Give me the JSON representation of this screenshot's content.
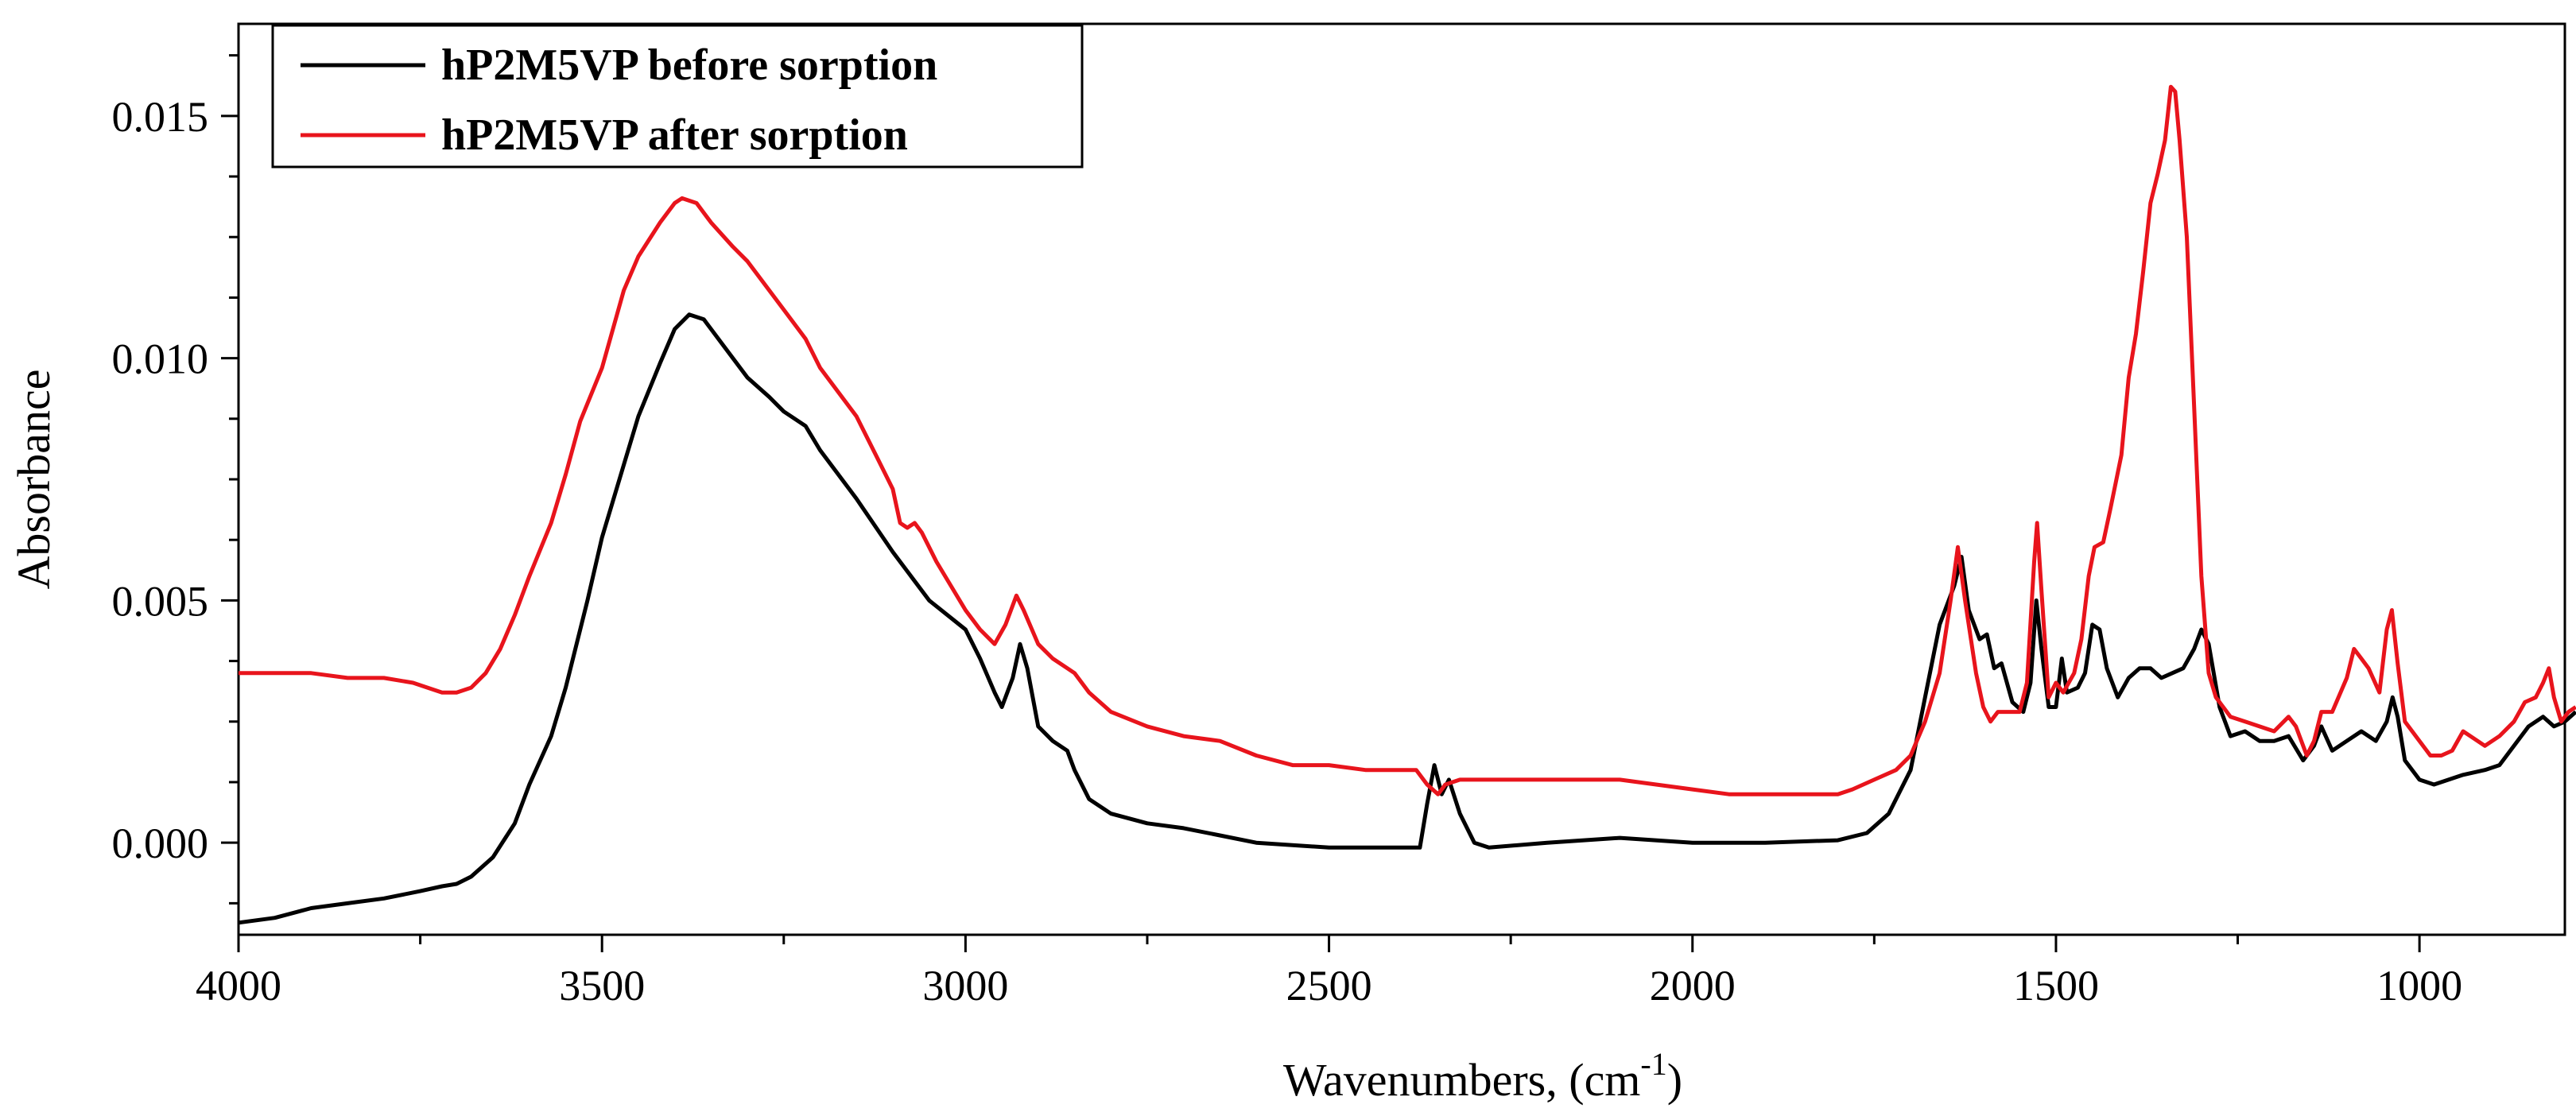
{
  "chart_data": {
    "type": "line",
    "title": "",
    "xlabel": "Wavenumbers, (cm",
    "xlabel_sup": "-1",
    "xlabel_close": ")",
    "ylabel": "Absorbance",
    "xlim": [
      4000,
      800
    ],
    "ylim": [
      -0.0019,
      0.0169
    ],
    "x_ticks": [
      4000,
      3500,
      3000,
      2500,
      2000,
      1500,
      1000
    ],
    "x_tick_labels": [
      "4000",
      "3500",
      "3000",
      "2500",
      "2000",
      "1500",
      "1000"
    ],
    "y_ticks": [
      0.0,
      0.005,
      0.01,
      0.015
    ],
    "y_tick_labels": [
      "0.000",
      "0.005",
      "0.010",
      "0.015"
    ],
    "grid": false,
    "legend_position": "top-left",
    "series": [
      {
        "name": "hP2M5VP before sorption",
        "color": "#000000",
        "points": [
          [
            4000,
            -0.00165
          ],
          [
            3950,
            -0.00155
          ],
          [
            3900,
            -0.00135
          ],
          [
            3850,
            -0.00125
          ],
          [
            3800,
            -0.00115
          ],
          [
            3750,
            -0.001
          ],
          [
            3720,
            -0.0009
          ],
          [
            3700,
            -0.00085
          ],
          [
            3680,
            -0.0007
          ],
          [
            3650,
            -0.0003
          ],
          [
            3620,
            0.0004
          ],
          [
            3600,
            0.0012
          ],
          [
            3570,
            0.0022
          ],
          [
            3550,
            0.0032
          ],
          [
            3520,
            0.005
          ],
          [
            3500,
            0.0063
          ],
          [
            3470,
            0.0078
          ],
          [
            3450,
            0.0088
          ],
          [
            3420,
            0.0099
          ],
          [
            3400,
            0.0106
          ],
          [
            3380,
            0.0109
          ],
          [
            3360,
            0.0108
          ],
          [
            3330,
            0.0102
          ],
          [
            3300,
            0.0096
          ],
          [
            3270,
            0.0092
          ],
          [
            3250,
            0.0089
          ],
          [
            3220,
            0.0086
          ],
          [
            3200,
            0.0081
          ],
          [
            3150,
            0.0071
          ],
          [
            3100,
            0.006
          ],
          [
            3050,
            0.005
          ],
          [
            3000,
            0.0044
          ],
          [
            2980,
            0.0038
          ],
          [
            2960,
            0.0031
          ],
          [
            2950,
            0.0028
          ],
          [
            2935,
            0.0034
          ],
          [
            2925,
            0.0041
          ],
          [
            2915,
            0.0036
          ],
          [
            2900,
            0.0024
          ],
          [
            2880,
            0.0021
          ],
          [
            2860,
            0.0019
          ],
          [
            2850,
            0.0015
          ],
          [
            2830,
            0.0009
          ],
          [
            2800,
            0.0006
          ],
          [
            2750,
            0.0004
          ],
          [
            2700,
            0.0003
          ],
          [
            2650,
            0.00015
          ],
          [
            2600,
            0.0
          ],
          [
            2500,
            -0.0001
          ],
          [
            2400,
            -0.0001
          ],
          [
            2375,
            -0.0001
          ],
          [
            2365,
            0.0008
          ],
          [
            2355,
            0.0016
          ],
          [
            2345,
            0.001
          ],
          [
            2335,
            0.0013
          ],
          [
            2320,
            0.0006
          ],
          [
            2300,
            0.0
          ],
          [
            2280,
            -0.0001
          ],
          [
            2200,
            0.0
          ],
          [
            2100,
            0.0001
          ],
          [
            2000,
            0.0
          ],
          [
            1900,
            0.0
          ],
          [
            1800,
            5e-05
          ],
          [
            1760,
            0.0002
          ],
          [
            1730,
            0.0006
          ],
          [
            1700,
            0.0015
          ],
          [
            1680,
            0.003
          ],
          [
            1660,
            0.0045
          ],
          [
            1640,
            0.0053
          ],
          [
            1630,
            0.0059
          ],
          [
            1620,
            0.0048
          ],
          [
            1605,
            0.0042
          ],
          [
            1595,
            0.0043
          ],
          [
            1585,
            0.0036
          ],
          [
            1575,
            0.0037
          ],
          [
            1560,
            0.0029
          ],
          [
            1545,
            0.0027
          ],
          [
            1535,
            0.0033
          ],
          [
            1527,
            0.005
          ],
          [
            1520,
            0.004
          ],
          [
            1510,
            0.0028
          ],
          [
            1500,
            0.0028
          ],
          [
            1492,
            0.0038
          ],
          [
            1485,
            0.0031
          ],
          [
            1470,
            0.0032
          ],
          [
            1460,
            0.0035
          ],
          [
            1450,
            0.0045
          ],
          [
            1440,
            0.0044
          ],
          [
            1430,
            0.0036
          ],
          [
            1415,
            0.003
          ],
          [
            1400,
            0.0034
          ],
          [
            1385,
            0.0036
          ],
          [
            1370,
            0.0036
          ],
          [
            1355,
            0.0034
          ],
          [
            1340,
            0.0035
          ],
          [
            1325,
            0.0036
          ],
          [
            1310,
            0.004
          ],
          [
            1300,
            0.0044
          ],
          [
            1290,
            0.0041
          ],
          [
            1275,
            0.0028
          ],
          [
            1260,
            0.0022
          ],
          [
            1240,
            0.0023
          ],
          [
            1220,
            0.0021
          ],
          [
            1200,
            0.0021
          ],
          [
            1180,
            0.0022
          ],
          [
            1160,
            0.0017
          ],
          [
            1145,
            0.002
          ],
          [
            1135,
            0.0024
          ],
          [
            1120,
            0.0019
          ],
          [
            1100,
            0.0021
          ],
          [
            1080,
            0.0023
          ],
          [
            1060,
            0.0021
          ],
          [
            1045,
            0.0025
          ],
          [
            1037,
            0.003
          ],
          [
            1030,
            0.0026
          ],
          [
            1020,
            0.0017
          ],
          [
            1000,
            0.0013
          ],
          [
            980,
            0.0012
          ],
          [
            960,
            0.0013
          ],
          [
            940,
            0.0014
          ],
          [
            910,
            0.0015
          ],
          [
            890,
            0.0016
          ],
          [
            870,
            0.002
          ],
          [
            850,
            0.0024
          ],
          [
            830,
            0.0026
          ],
          [
            815,
            0.0024
          ],
          [
            800,
            0.0025
          ],
          [
            785,
            0.0027
          ]
        ]
      },
      {
        "name": "hP2M5VP after sorption",
        "color": "#e8141c",
        "points": [
          [
            4000,
            0.0035
          ],
          [
            3950,
            0.0035
          ],
          [
            3900,
            0.0035
          ],
          [
            3850,
            0.0034
          ],
          [
            3800,
            0.0034
          ],
          [
            3760,
            0.0033
          ],
          [
            3740,
            0.0032
          ],
          [
            3720,
            0.0031
          ],
          [
            3700,
            0.0031
          ],
          [
            3680,
            0.0032
          ],
          [
            3660,
            0.0035
          ],
          [
            3640,
            0.004
          ],
          [
            3620,
            0.0047
          ],
          [
            3600,
            0.0055
          ],
          [
            3570,
            0.0066
          ],
          [
            3550,
            0.0076
          ],
          [
            3530,
            0.0087
          ],
          [
            3500,
            0.0098
          ],
          [
            3470,
            0.0114
          ],
          [
            3450,
            0.0121
          ],
          [
            3420,
            0.0128
          ],
          [
            3400,
            0.0132
          ],
          [
            3390,
            0.0133
          ],
          [
            3370,
            0.0132
          ],
          [
            3350,
            0.0128
          ],
          [
            3320,
            0.0123
          ],
          [
            3300,
            0.012
          ],
          [
            3270,
            0.0114
          ],
          [
            3250,
            0.011
          ],
          [
            3220,
            0.0104
          ],
          [
            3200,
            0.0098
          ],
          [
            3150,
            0.0088
          ],
          [
            3120,
            0.0079
          ],
          [
            3100,
            0.0073
          ],
          [
            3090,
            0.0066
          ],
          [
            3080,
            0.0065
          ],
          [
            3070,
            0.0066
          ],
          [
            3060,
            0.0064
          ],
          [
            3040,
            0.0058
          ],
          [
            3020,
            0.0053
          ],
          [
            3000,
            0.0048
          ],
          [
            2980,
            0.0044
          ],
          [
            2960,
            0.0041
          ],
          [
            2945,
            0.0045
          ],
          [
            2930,
            0.0051
          ],
          [
            2920,
            0.0048
          ],
          [
            2900,
            0.0041
          ],
          [
            2880,
            0.0038
          ],
          [
            2860,
            0.0036
          ],
          [
            2850,
            0.0035
          ],
          [
            2830,
            0.0031
          ],
          [
            2800,
            0.0027
          ],
          [
            2750,
            0.0024
          ],
          [
            2700,
            0.0022
          ],
          [
            2650,
            0.0021
          ],
          [
            2600,
            0.0018
          ],
          [
            2550,
            0.0016
          ],
          [
            2500,
            0.0016
          ],
          [
            2450,
            0.0015
          ],
          [
            2400,
            0.0015
          ],
          [
            2380,
            0.0015
          ],
          [
            2365,
            0.0012
          ],
          [
            2350,
            0.001
          ],
          [
            2340,
            0.0012
          ],
          [
            2320,
            0.0013
          ],
          [
            2300,
            0.0013
          ],
          [
            2250,
            0.0013
          ],
          [
            2200,
            0.0013
          ],
          [
            2100,
            0.0013
          ],
          [
            2050,
            0.0012
          ],
          [
            2000,
            0.0011
          ],
          [
            1950,
            0.001
          ],
          [
            1900,
            0.001
          ],
          [
            1850,
            0.001
          ],
          [
            1800,
            0.001
          ],
          [
            1780,
            0.0011
          ],
          [
            1750,
            0.0013
          ],
          [
            1720,
            0.0015
          ],
          [
            1700,
            0.0018
          ],
          [
            1680,
            0.0025
          ],
          [
            1660,
            0.0035
          ],
          [
            1645,
            0.005
          ],
          [
            1635,
            0.0061
          ],
          [
            1625,
            0.005
          ],
          [
            1610,
            0.0035
          ],
          [
            1600,
            0.0028
          ],
          [
            1590,
            0.0025
          ],
          [
            1580,
            0.0027
          ],
          [
            1570,
            0.0027
          ],
          [
            1550,
            0.0027
          ],
          [
            1540,
            0.0033
          ],
          [
            1530,
            0.0058
          ],
          [
            1526,
            0.0066
          ],
          [
            1520,
            0.0052
          ],
          [
            1510,
            0.003
          ],
          [
            1500,
            0.0033
          ],
          [
            1490,
            0.0031
          ],
          [
            1475,
            0.0035
          ],
          [
            1465,
            0.0042
          ],
          [
            1455,
            0.0055
          ],
          [
            1447,
            0.0061
          ],
          [
            1435,
            0.0062
          ],
          [
            1425,
            0.0069
          ],
          [
            1410,
            0.008
          ],
          [
            1400,
            0.0096
          ],
          [
            1390,
            0.0105
          ],
          [
            1380,
            0.0118
          ],
          [
            1370,
            0.0132
          ],
          [
            1360,
            0.0138
          ],
          [
            1350,
            0.0145
          ],
          [
            1342,
            0.0156
          ],
          [
            1336,
            0.0155
          ],
          [
            1330,
            0.0145
          ],
          [
            1320,
            0.0125
          ],
          [
            1310,
            0.009
          ],
          [
            1300,
            0.0055
          ],
          [
            1290,
            0.0035
          ],
          [
            1280,
            0.003
          ],
          [
            1260,
            0.0026
          ],
          [
            1240,
            0.0025
          ],
          [
            1220,
            0.0024
          ],
          [
            1200,
            0.0023
          ],
          [
            1180,
            0.0026
          ],
          [
            1170,
            0.0024
          ],
          [
            1155,
            0.0018
          ],
          [
            1145,
            0.0021
          ],
          [
            1135,
            0.0027
          ],
          [
            1120,
            0.0027
          ],
          [
            1100,
            0.0034
          ],
          [
            1090,
            0.004
          ],
          [
            1080,
            0.0038
          ],
          [
            1070,
            0.0036
          ],
          [
            1055,
            0.0031
          ],
          [
            1045,
            0.0044
          ],
          [
            1038,
            0.0048
          ],
          [
            1030,
            0.0037
          ],
          [
            1020,
            0.0025
          ],
          [
            1000,
            0.0021
          ],
          [
            985,
            0.0018
          ],
          [
            970,
            0.0018
          ],
          [
            955,
            0.0019
          ],
          [
            940,
            0.0023
          ],
          [
            930,
            0.0022
          ],
          [
            910,
            0.002
          ],
          [
            890,
            0.0022
          ],
          [
            870,
            0.0025
          ],
          [
            855,
            0.0029
          ],
          [
            840,
            0.003
          ],
          [
            830,
            0.0033
          ],
          [
            822,
            0.0036
          ],
          [
            815,
            0.003
          ],
          [
            805,
            0.0025
          ],
          [
            795,
            0.0027
          ],
          [
            785,
            0.0028
          ]
        ]
      }
    ]
  }
}
